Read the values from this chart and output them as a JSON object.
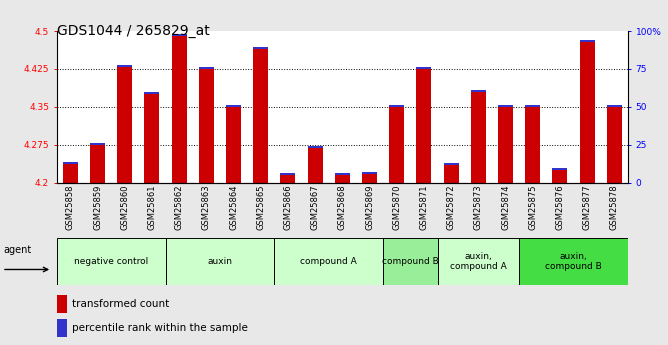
{
  "title": "GDS1044 / 265829_at",
  "samples": [
    "GSM25858",
    "GSM25859",
    "GSM25860",
    "GSM25861",
    "GSM25862",
    "GSM25863",
    "GSM25864",
    "GSM25865",
    "GSM25866",
    "GSM25867",
    "GSM25868",
    "GSM25869",
    "GSM25870",
    "GSM25871",
    "GSM25872",
    "GSM25873",
    "GSM25874",
    "GSM25875",
    "GSM25876",
    "GSM25877",
    "GSM25878"
  ],
  "red_values": [
    4.238,
    4.275,
    4.428,
    4.375,
    4.49,
    4.425,
    4.35,
    4.465,
    4.215,
    4.268,
    4.215,
    4.218,
    4.35,
    4.425,
    4.235,
    4.38,
    4.35,
    4.35,
    4.225,
    4.478,
    4.35
  ],
  "blue_values": [
    0.004,
    0.004,
    0.004,
    0.004,
    0.004,
    0.004,
    0.004,
    0.004,
    0.004,
    0.004,
    0.004,
    0.004,
    0.004,
    0.004,
    0.004,
    0.004,
    0.004,
    0.004,
    0.004,
    0.004,
    0.004
  ],
  "ymin": 4.2,
  "ymax": 4.5,
  "yticks": [
    4.2,
    4.275,
    4.35,
    4.425,
    4.5
  ],
  "ytick_labels": [
    "4.2",
    "4.275",
    "4.35",
    "4.425",
    "4.5"
  ],
  "right_yticks": [
    0,
    25,
    50,
    75,
    100
  ],
  "right_ytick_labels": [
    "0",
    "25",
    "50",
    "75",
    "100%"
  ],
  "bar_color_red": "#cc0000",
  "bar_color_blue": "#3333cc",
  "bar_width": 0.55,
  "groups": [
    {
      "label": "negative control",
      "start": 0,
      "end": 4,
      "color": "#ccffcc"
    },
    {
      "label": "auxin",
      "start": 4,
      "end": 8,
      "color": "#ccffcc"
    },
    {
      "label": "compound A",
      "start": 8,
      "end": 12,
      "color": "#ccffcc"
    },
    {
      "label": "compound B",
      "start": 12,
      "end": 14,
      "color": "#99ee99"
    },
    {
      "label": "auxin,\ncompound A",
      "start": 14,
      "end": 17,
      "color": "#ccffcc"
    },
    {
      "label": "auxin,\ncompound B",
      "start": 17,
      "end": 21,
      "color": "#44dd44"
    }
  ],
  "agent_label": "agent",
  "legend_red_label": "transformed count",
  "legend_blue_label": "percentile rank within the sample",
  "bg_color": "#e8e8e8",
  "plot_bg_color": "#ffffff",
  "dotted_lines": [
    4.275,
    4.35,
    4.425
  ],
  "title_fontsize": 10,
  "tick_fontsize": 6.5,
  "label_fontsize": 7.5
}
